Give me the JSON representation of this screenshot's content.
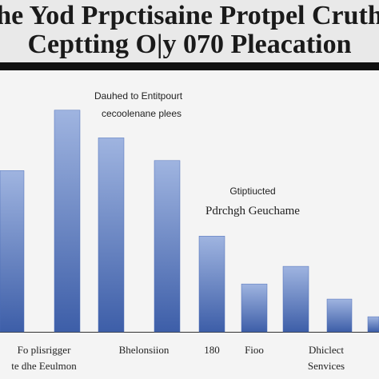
{
  "chart_data": {
    "type": "bar",
    "title": [
      "he Yod Prpctisaine Protpel Cruth",
      "Ceptting O|y 070 Pleacation"
    ],
    "annotations": [
      [
        "Dauhed to Entitpourt",
        "cecoolenane plees"
      ],
      [
        "Gtiptiucted",
        "Pdrchgh Geuchame"
      ]
    ],
    "categories": [
      null,
      [
        "Fo plisrigger",
        "te dhe Eeulmon"
      ],
      [
        "Bhelonsiion"
      ],
      null,
      [
        "180"
      ],
      [
        "Fioo"
      ],
      null,
      [
        "Dhiclect",
        "Senvices"
      ],
      null
    ],
    "values": [
      64,
      88,
      77,
      68,
      38,
      19,
      26,
      13,
      6
    ],
    "color": "#4a6cb8",
    "ylim": [
      0,
      100
    ]
  }
}
